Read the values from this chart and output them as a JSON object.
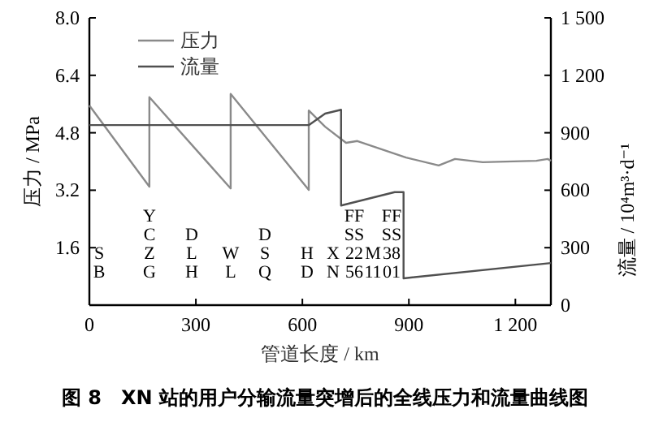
{
  "chart_data": {
    "type": "line",
    "xlabel": "管道长度 / km",
    "ylabel": "压力 / MPa",
    "y2label": "流量 / 10⁴m³·d⁻¹",
    "xlim": [
      0,
      1300
    ],
    "xticks": [
      0,
      300,
      600,
      900,
      {
        "value": 1200,
        "label": "1 200"
      }
    ],
    "ylim": [
      0,
      8
    ],
    "yticks": [
      1.6,
      3.2,
      4.8,
      6.4,
      {
        "value": 8,
        "label": "8.0"
      }
    ],
    "y2lim": [
      0,
      1500
    ],
    "y2ticks": [
      0,
      300,
      600,
      900,
      {
        "value": 1200,
        "label": "1 200"
      },
      {
        "value": 1500,
        "label": "1 500"
      }
    ],
    "legend": "top left",
    "series": [
      {
        "name": "压力",
        "color": "#8a8a8a",
        "x": [
          0,
          169,
          169,
          398,
          398,
          618,
          618,
          664,
          723,
          755,
          892,
          984,
          1030,
          1108,
          1259,
          1291,
          1300
        ],
        "values": [
          5.56,
          3.3,
          5.79,
          3.25,
          5.88,
          3.21,
          5.42,
          4.97,
          4.52,
          4.57,
          4.11,
          3.89,
          4.07,
          3.98,
          4.02,
          4.07,
          4.02
        ]
      },
      {
        "name": "流量",
        "color": "#505050",
        "axis": "y2",
        "x": [
          0,
          300,
          618,
          664,
          709,
          709,
          860,
          885,
          885,
          1300
        ],
        "values": [
          940,
          940,
          940,
          1000,
          1020,
          520,
          590,
          590,
          140,
          220
        ]
      }
    ],
    "annotations": [
      "S\nB",
      "Y\nC\nZ\nG",
      "D\nL\nH",
      "W\nL",
      "D\nS\nQ",
      "H\nD",
      "X\nN",
      "FF\nSS\n22\n56",
      "M\n11",
      "FF\nSS\n38\n01",
      "图 8　XN 站的用户分输流量突增后的全线压力和流量曲线图"
    ]
  }
}
